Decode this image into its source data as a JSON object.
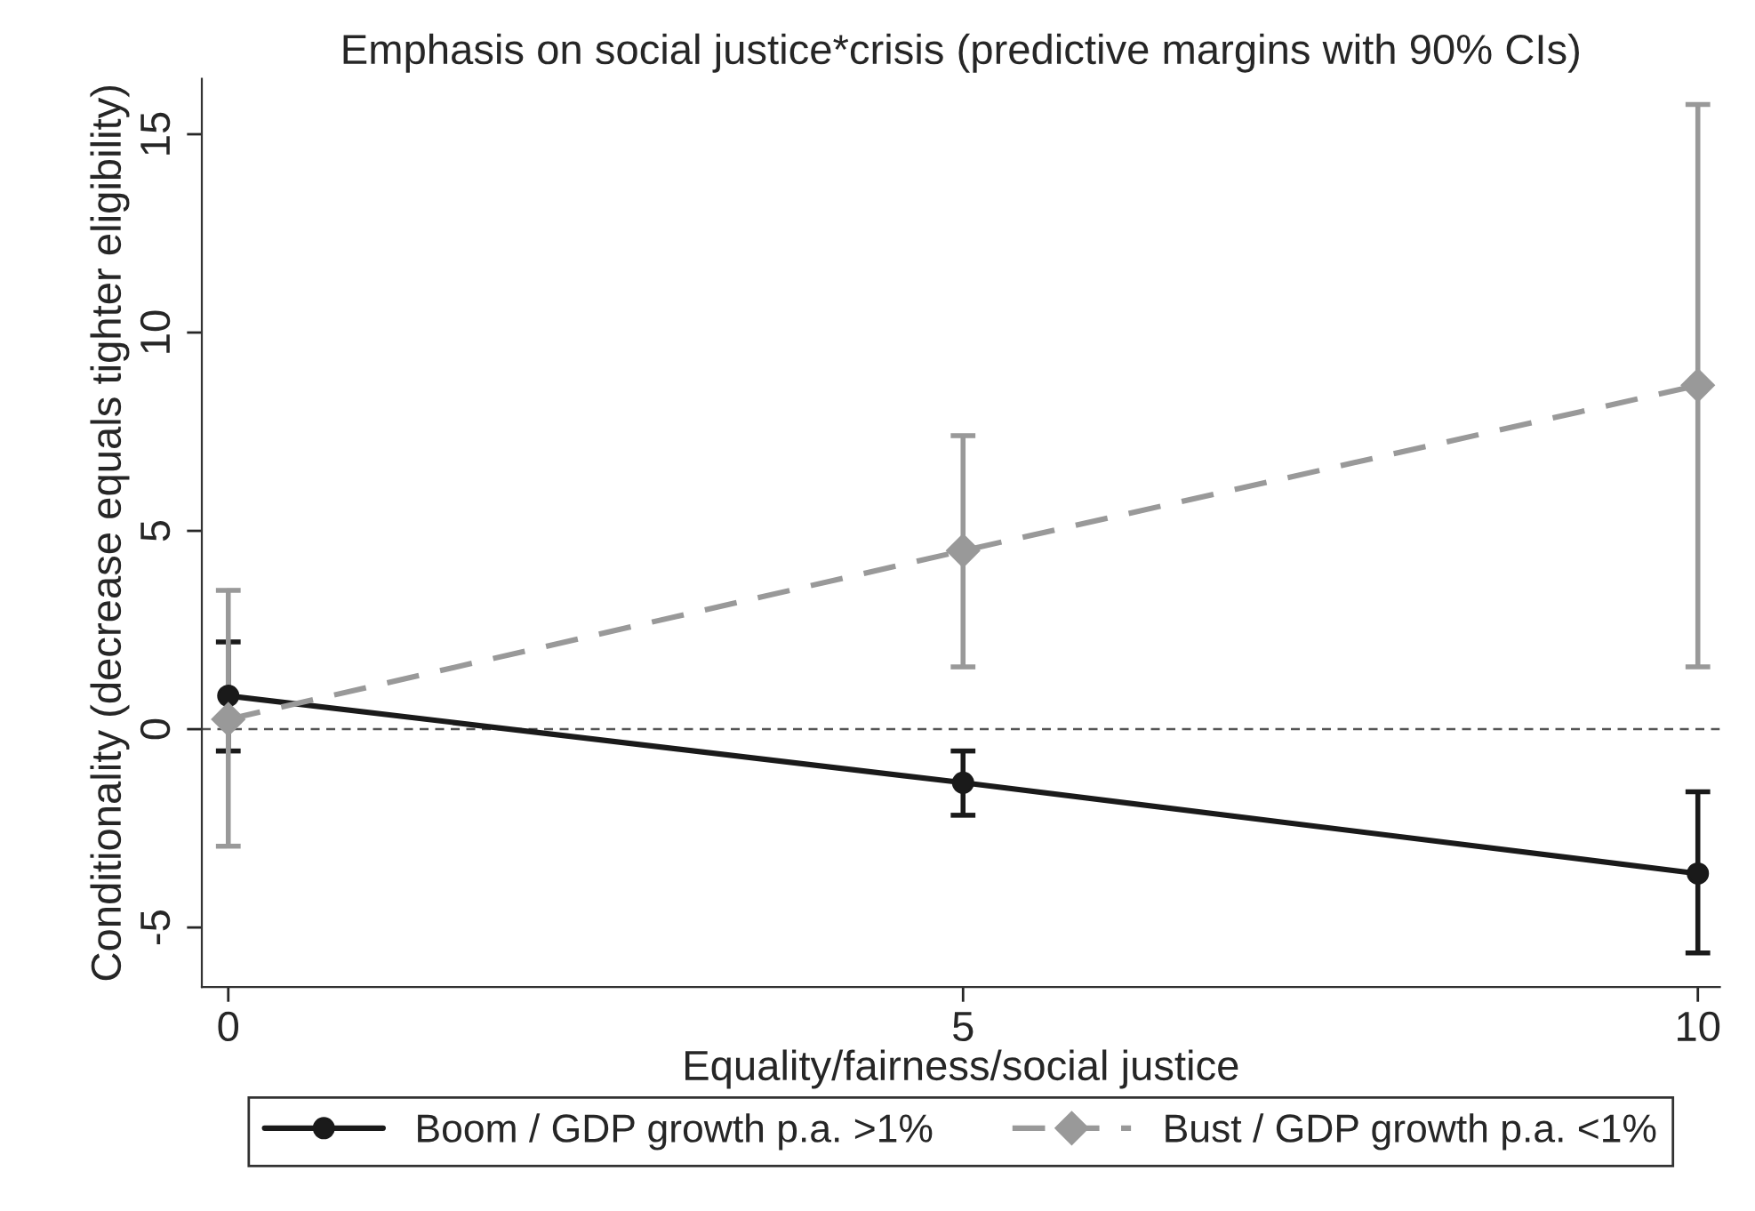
{
  "chart_data": {
    "type": "line",
    "title": "Emphasis on social justice*crisis (predictive margins with 90% CIs)",
    "xlabel": "Equality/fairness/social justice",
    "ylabel": "Conditionality (decrease equals tighter eligibility)",
    "x": [
      0,
      5,
      10
    ],
    "series": [
      {
        "name": "Boom / GDP growth p.a. >1%",
        "color": "#1a1a1a",
        "values": [
          0.84,
          -1.35,
          -3.64
        ],
        "errors": [
          [
            -0.55,
            2.2
          ],
          [
            -2.17,
            -0.55
          ],
          [
            -5.64,
            -1.58
          ]
        ],
        "marker": "circle",
        "line_style": "solid"
      },
      {
        "name": "Bust / GDP growth p.a. <1%",
        "color": "#999999",
        "values": [
          0.25,
          4.5,
          8.67
        ],
        "errors": [
          [
            -2.95,
            3.5
          ],
          [
            1.57,
            7.4
          ],
          [
            1.57,
            15.75
          ]
        ],
        "marker": "diamond",
        "line_style": "dashed"
      }
    ],
    "xlim": [
      -0.18,
      10.15
    ],
    "ylim": [
      -6.5,
      16.4
    ],
    "xticks": [
      0,
      5,
      10
    ],
    "yticks": [
      -5,
      0,
      5,
      10,
      15
    ],
    "ref_lines": [
      {
        "axis": "y",
        "value": 0,
        "color": "#555555",
        "line_style": "dashed"
      }
    ],
    "grid": false,
    "legend": "bottom"
  }
}
